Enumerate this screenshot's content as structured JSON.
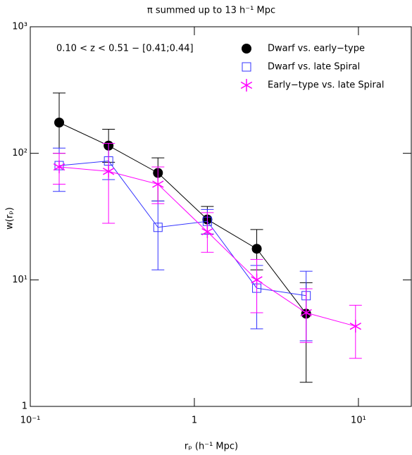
{
  "chart_data": {
    "type": "line",
    "title": "π summed up to 13 h⁻¹ Mpc",
    "annotation": "0.10 < z < 0.51 − [0.41;0.44]",
    "x_label": "rₚ (h⁻¹ Mpc)",
    "y_label": "w(rₚ)",
    "log_x": true,
    "log_y": true,
    "x": [
      0.15,
      0.3,
      0.6,
      1.2,
      2.4,
      4.8,
      9.6
    ],
    "xlim": [
      0.1,
      21
    ],
    "ylim": [
      1,
      1000
    ],
    "xticks": [
      {
        "value": 0.1,
        "label": "10⁻¹"
      },
      1,
      {
        "value": 10,
        "label": "10¹"
      }
    ],
    "yticks": [
      1,
      {
        "value": 10,
        "label": "10¹"
      },
      {
        "value": 100,
        "label": "10²"
      },
      {
        "value": 1000,
        "label": "10³"
      }
    ],
    "legend": "upper right",
    "series": [
      {
        "name": "Dwarf vs. early−type",
        "color": "#000000",
        "marker": "circle",
        "values": [
          175,
          115,
          70,
          30,
          17.6,
          5.4,
          null
        ],
        "err_low": [
          100,
          85,
          42,
          23,
          12,
          1.55,
          null
        ],
        "err_high": [
          300,
          155,
          92,
          38,
          25,
          9.5,
          null
        ]
      },
      {
        "name": "Dwarf vs. late Spiral",
        "color": "#3333ff",
        "marker": "square",
        "values": [
          80,
          87,
          26,
          29,
          8.6,
          7.5,
          null
        ],
        "err_low": [
          50,
          62,
          12,
          23,
          4.1,
          3.3,
          null
        ],
        "err_high": [
          110,
          120,
          42,
          36,
          13,
          11.7,
          null
        ]
      },
      {
        "name": "Early−type vs. late Spiral",
        "color": "#ff00ff",
        "marker": "star",
        "values": [
          78,
          72,
          57,
          24,
          10,
          5.5,
          4.3
        ],
        "err_low": [
          57,
          28,
          40,
          16.5,
          5.5,
          3.2,
          2.4
        ],
        "err_high": [
          100,
          120,
          78,
          34,
          14.5,
          8.5,
          6.3
        ]
      }
    ]
  }
}
